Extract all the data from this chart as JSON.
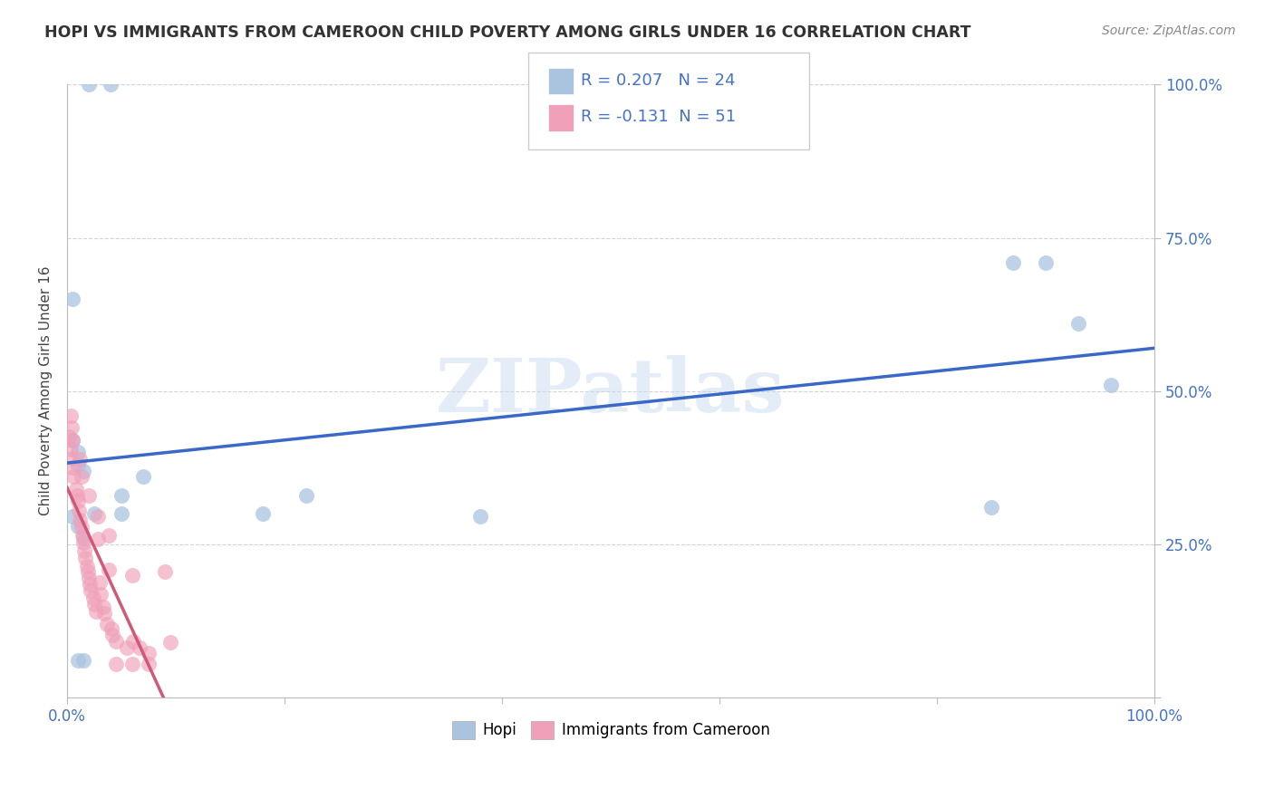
{
  "title": "HOPI VS IMMIGRANTS FROM CAMEROON CHILD POVERTY AMONG GIRLS UNDER 16 CORRELATION CHART",
  "source": "Source: ZipAtlas.com",
  "ylabel": "Child Poverty Among Girls Under 16",
  "hopi_color": "#aac4e0",
  "cameroon_color": "#f0a0b8",
  "hopi_line_color": "#3a68c8",
  "cameroon_line_color": "#d05878",
  "hopi_R": 0.207,
  "hopi_N": 24,
  "cameroon_R": -0.131,
  "cameroon_N": 51,
  "watermark": "ZIPatlas",
  "hopi_scatter_x": [
    0.02,
    0.04,
    0.005,
    0.01,
    0.015,
    0.05,
    0.07,
    0.005,
    0.01,
    0.015,
    0.18,
    0.22,
    0.005,
    0.01,
    0.38,
    0.85,
    0.87,
    0.9,
    0.93,
    0.96,
    0.025,
    0.05,
    0.015,
    0.01
  ],
  "hopi_scatter_y": [
    1.0,
    1.0,
    0.42,
    0.4,
    0.37,
    0.33,
    0.36,
    0.295,
    0.28,
    0.26,
    0.3,
    0.33,
    0.65,
    0.38,
    0.295,
    0.31,
    0.71,
    0.71,
    0.61,
    0.51,
    0.3,
    0.3,
    0.06,
    0.06
  ],
  "cameroon_scatter_x": [
    0.002,
    0.003,
    0.004,
    0.005,
    0.006,
    0.008,
    0.009,
    0.01,
    0.011,
    0.012,
    0.013,
    0.014,
    0.015,
    0.016,
    0.017,
    0.018,
    0.019,
    0.02,
    0.021,
    0.022,
    0.024,
    0.025,
    0.027,
    0.028,
    0.03,
    0.031,
    0.033,
    0.034,
    0.037,
    0.038,
    0.041,
    0.042,
    0.045,
    0.055,
    0.06,
    0.061,
    0.067,
    0.075,
    0.09,
    0.095,
    0.003,
    0.004,
    0.005,
    0.012,
    0.013,
    0.02,
    0.028,
    0.038,
    0.045,
    0.06,
    0.075
  ],
  "cameroon_scatter_y": [
    0.425,
    0.405,
    0.39,
    0.375,
    0.36,
    0.34,
    0.33,
    0.32,
    0.305,
    0.29,
    0.278,
    0.265,
    0.252,
    0.24,
    0.228,
    0.215,
    0.205,
    0.195,
    0.185,
    0.175,
    0.162,
    0.152,
    0.14,
    0.258,
    0.188,
    0.168,
    0.148,
    0.138,
    0.12,
    0.208,
    0.112,
    0.102,
    0.092,
    0.082,
    0.2,
    0.092,
    0.082,
    0.072,
    0.205,
    0.09,
    0.46,
    0.44,
    0.42,
    0.388,
    0.36,
    0.33,
    0.295,
    0.265,
    0.055,
    0.055,
    0.055
  ]
}
